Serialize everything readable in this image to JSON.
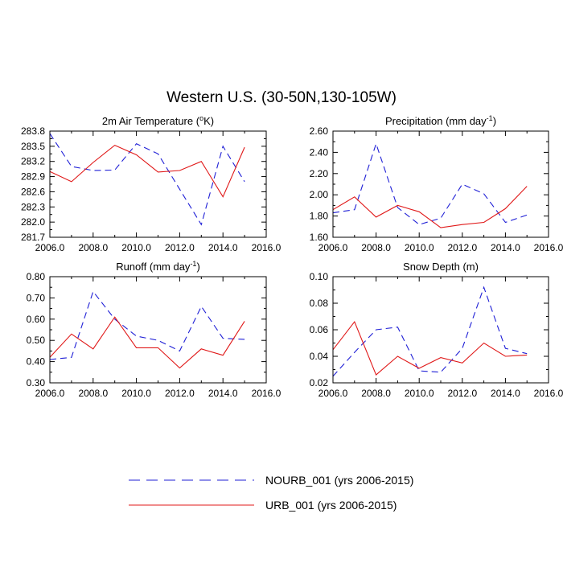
{
  "title": "Western U.S. (30-50N,130-105W)",
  "series_styles": {
    "NOURB_001": {
      "color": "#1f1fd6",
      "dash": "8,5"
    },
    "URB_001": {
      "color": "#e01818",
      "dash": ""
    }
  },
  "legend": [
    {
      "series": "NOURB_001",
      "label": "NOURB_001 (yrs 2006-2015)"
    },
    {
      "series": "URB_001",
      "label": "URB_001 (yrs 2006-2015)"
    }
  ],
  "chart_data": [
    {
      "type": "line",
      "title": "2m Air Temperature (°K)",
      "title_parts": {
        "pre": "2m Air Temperature (",
        "sup": "o",
        "post": "K)"
      },
      "x": [
        2006,
        2007,
        2008,
        2009,
        2010,
        2011,
        2012,
        2013,
        2014,
        2015
      ],
      "xlim": [
        2006,
        2016
      ],
      "xticks": [
        "2006.0",
        "2008.0",
        "2010.0",
        "2012.0",
        "2014.0",
        "2016.0"
      ],
      "ylim": [
        281.7,
        283.8
      ],
      "yticks": [
        "281.7",
        "282.0",
        "282.3",
        "282.6",
        "282.9",
        "283.2",
        "283.5",
        "283.8"
      ],
      "series": [
        {
          "name": "NOURB_001",
          "values": [
            283.75,
            283.1,
            283.02,
            283.03,
            283.55,
            283.35,
            282.65,
            281.95,
            283.5,
            282.8
          ]
        },
        {
          "name": "URB_001",
          "values": [
            283.0,
            282.8,
            283.18,
            283.52,
            283.33,
            282.99,
            283.02,
            283.2,
            282.5,
            283.48
          ]
        }
      ]
    },
    {
      "type": "line",
      "title": "Precipitation (mm day-1)",
      "title_parts": {
        "pre": "Precipitation (mm day",
        "sup": "-1",
        "post": ")"
      },
      "x": [
        2006,
        2007,
        2008,
        2009,
        2010,
        2011,
        2012,
        2013,
        2014,
        2015
      ],
      "xlim": [
        2006,
        2016
      ],
      "xticks": [
        "2006.0",
        "2008.0",
        "2010.0",
        "2012.0",
        "2014.0",
        "2016.0"
      ],
      "ylim": [
        1.6,
        2.6
      ],
      "yticks": [
        "1.60",
        "1.80",
        "2.00",
        "2.20",
        "2.40",
        "2.60"
      ],
      "series": [
        {
          "name": "NOURB_001",
          "values": [
            1.83,
            1.86,
            2.48,
            1.88,
            1.72,
            1.78,
            2.1,
            2.01,
            1.74,
            1.81
          ]
        },
        {
          "name": "URB_001",
          "values": [
            1.86,
            1.98,
            1.79,
            1.9,
            1.84,
            1.69,
            1.72,
            1.74,
            1.87,
            2.08
          ]
        }
      ]
    },
    {
      "type": "line",
      "title": "Runoff (mm day-1)",
      "title_parts": {
        "pre": "Runoff (mm day",
        "sup": "-1",
        "post": ")"
      },
      "x": [
        2006,
        2007,
        2008,
        2009,
        2010,
        2011,
        2012,
        2013,
        2014,
        2015
      ],
      "xlim": [
        2006,
        2016
      ],
      "xticks": [
        "2006.0",
        "2008.0",
        "2010.0",
        "2012.0",
        "2014.0",
        "2016.0"
      ],
      "ylim": [
        0.3,
        0.8
      ],
      "yticks": [
        "0.30",
        "0.40",
        "0.50",
        "0.60",
        "0.70",
        "0.80"
      ],
      "series": [
        {
          "name": "NOURB_001",
          "values": [
            0.41,
            0.42,
            0.73,
            0.6,
            0.52,
            0.5,
            0.45,
            0.66,
            0.51,
            0.505
          ]
        },
        {
          "name": "URB_001",
          "values": [
            0.42,
            0.53,
            0.46,
            0.61,
            0.465,
            0.465,
            0.37,
            0.46,
            0.43,
            0.59
          ]
        }
      ]
    },
    {
      "type": "line",
      "title": "Snow Depth (m)",
      "title_parts": {
        "pre": "Snow Depth (m)",
        "sup": "",
        "post": ""
      },
      "x": [
        2006,
        2007,
        2008,
        2009,
        2010,
        2011,
        2012,
        2013,
        2014,
        2015
      ],
      "xlim": [
        2006,
        2016
      ],
      "xticks": [
        "2006.0",
        "2008.0",
        "2010.0",
        "2012.0",
        "2014.0",
        "2016.0"
      ],
      "ylim": [
        0.02,
        0.1
      ],
      "yticks": [
        "0.02",
        "0.04",
        "0.06",
        "0.08",
        "0.10"
      ],
      "series": [
        {
          "name": "NOURB_001",
          "values": [
            0.025,
            0.043,
            0.06,
            0.062,
            0.029,
            0.028,
            0.046,
            0.092,
            0.046,
            0.042
          ]
        },
        {
          "name": "URB_001",
          "values": [
            0.045,
            0.066,
            0.026,
            0.04,
            0.031,
            0.039,
            0.035,
            0.05,
            0.04,
            0.041
          ]
        }
      ]
    }
  ]
}
